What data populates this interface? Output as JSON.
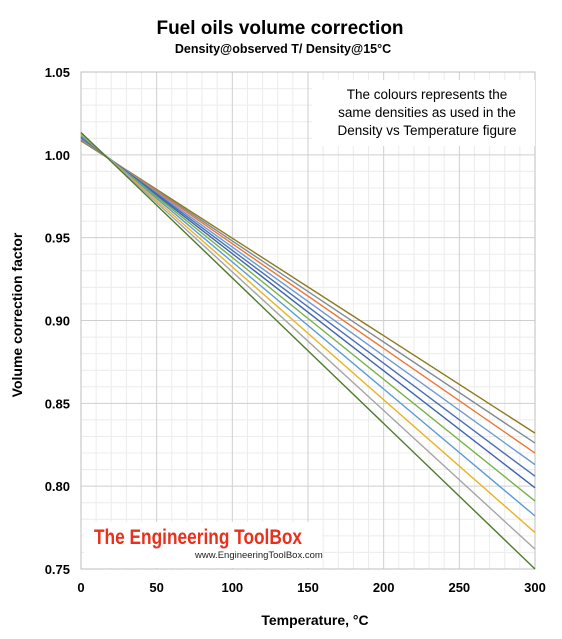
{
  "chart_data": {
    "type": "line",
    "title": "Fuel oils volume correction",
    "subtitle": "Density@observed T/ Density@15°C",
    "xlabel": "Temperature, °C",
    "ylabel": "Volume correction factor",
    "xlim": [
      0,
      300
    ],
    "ylim": [
      0.75,
      1.05
    ],
    "xticks": [
      "0",
      "50",
      "100",
      "150",
      "200",
      "250",
      "300"
    ],
    "yticks": [
      "0.75",
      "0.80",
      "0.85",
      "0.90",
      "0.95",
      "1.00",
      "1.05"
    ],
    "grid": true,
    "annotation": [
      "The colours represents the",
      "same densities as used in the",
      "Density vs Temperature figure"
    ],
    "watermark": {
      "title": "The Engineering ToolBox",
      "url": "www.EngineeringToolBox.com"
    },
    "series": [
      {
        "color": "#8e7a1f",
        "x": [
          0,
          300
        ],
        "y": [
          1.0085,
          0.832
        ]
      },
      {
        "color": "#7e8a96",
        "x": [
          0,
          300
        ],
        "y": [
          1.009,
          0.826
        ]
      },
      {
        "color": "#e8793a",
        "x": [
          0,
          300
        ],
        "y": [
          1.0095,
          0.82
        ]
      },
      {
        "color": "#6f9ad0",
        "x": [
          0,
          300
        ],
        "y": [
          1.01,
          0.813
        ]
      },
      {
        "color": "#4a6fb5",
        "x": [
          0,
          300
        ],
        "y": [
          1.0105,
          0.806
        ]
      },
      {
        "color": "#3f64ad",
        "x": [
          0,
          300
        ],
        "y": [
          1.011,
          0.799
        ]
      },
      {
        "color": "#77b148",
        "x": [
          0,
          300
        ],
        "y": [
          1.0115,
          0.791
        ]
      },
      {
        "color": "#5b9bd5",
        "x": [
          0,
          300
        ],
        "y": [
          1.012,
          0.782
        ]
      },
      {
        "color": "#e8b326",
        "x": [
          0,
          300
        ],
        "y": [
          1.0125,
          0.772
        ]
      },
      {
        "color": "#a5a5a5",
        "x": [
          0,
          300
        ],
        "y": [
          1.013,
          0.762
        ]
      },
      {
        "color": "#4e7a2a",
        "x": [
          0,
          300
        ],
        "y": [
          1.0135,
          0.75
        ]
      }
    ]
  }
}
